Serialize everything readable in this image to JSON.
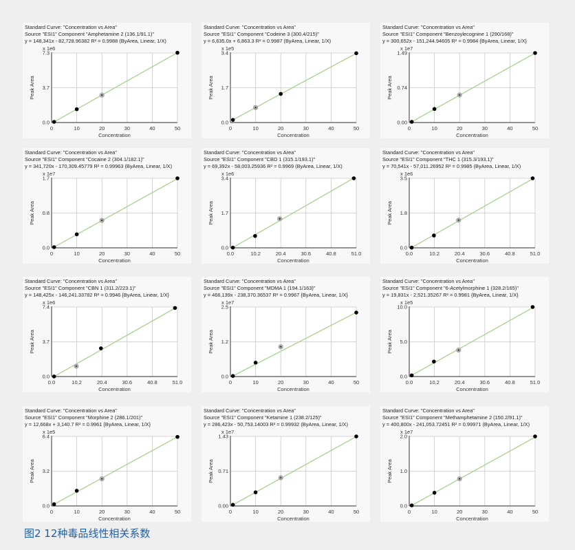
{
  "caption": "图2 12种毒品线性相关系数",
  "colors": {
    "fit_line": "#9fd08a",
    "point": "#000000",
    "excluded_point": "#a8a8a8",
    "grid": "#c8c8c8",
    "caption": "#1f5fa8"
  },
  "chart_data": [
    {
      "type": "scatter",
      "title": "Standard Curve: \"Concentration vs Area\"",
      "subtitle": "Source \"ESI1\" Component \"Amphetamine 2 (136.1/91.1)\"",
      "equation": "y = 148,341x - 82,728.96382    R² = 0.9988  (ByArea, Linear, 1/X)",
      "xlabel": "Concentration",
      "ylabel": "Peak Area",
      "multiplier": "x 1e6",
      "xlim": [
        0,
        50
      ],
      "ylim": [
        0,
        7.3
      ],
      "xticks": [
        "0",
        "10",
        "20",
        "30",
        "40",
        "50"
      ],
      "yticks": [
        "0.0",
        "3.7",
        "7.3"
      ],
      "slope": 148341,
      "intercept": -82728.96382,
      "scale": 1000000.0,
      "points": [
        {
          "x": 1,
          "y": 0.07
        },
        {
          "x": 10,
          "y": 1.4
        },
        {
          "x": 20,
          "y": 2.88,
          "excluded": true
        },
        {
          "x": 50,
          "y": 7.33
        }
      ]
    },
    {
      "type": "scatter",
      "title": "Standard Curve: \"Concentration vs Area\"",
      "subtitle": "Source \"ESI1\" Component \"Codeine 3 (300.4/215)\"",
      "equation": "y = 6,635.0x + 6,863.3    R² = 0.9987  (ByArea, Linear, 1/X)",
      "xlabel": "Concentration",
      "ylabel": "Peak Area",
      "multiplier": "x 1e5",
      "xlim": [
        0,
        50
      ],
      "ylim": [
        0,
        3.4
      ],
      "xticks": [
        "0",
        "10",
        "20",
        "30",
        "40",
        "50"
      ],
      "yticks": [
        "0.0",
        "1.7",
        "3.4"
      ],
      "slope": 6635.0,
      "intercept": 6863.3,
      "scale": 100000.0,
      "points": [
        {
          "x": 1,
          "y": 0.13
        },
        {
          "x": 10,
          "y": 0.73,
          "excluded": true
        },
        {
          "x": 20,
          "y": 1.4
        },
        {
          "x": 50,
          "y": 3.39
        }
      ]
    },
    {
      "type": "scatter",
      "title": "Standard Curve: \"Concentration vs Area\"",
      "subtitle": "Source \"ESI1\" Component \"Benzoylecognine 1 (290/168)\"",
      "equation": "y = 300,652x - 151,244.94605    R² = 0.9984  {ByArea, Linear, 1/X}",
      "xlabel": "Concentration",
      "ylabel": "Peak Area",
      "multiplier": "x 1e7",
      "xlim": [
        0,
        50
      ],
      "ylim": [
        0,
        1.49
      ],
      "xticks": [
        "0",
        "10",
        "20",
        "30",
        "40",
        "50"
      ],
      "yticks": [
        "0.00",
        "0.74",
        "1.49"
      ],
      "slope": 300652,
      "intercept": -151244.94605,
      "scale": 10000000.0,
      "points": [
        {
          "x": 1,
          "y": 0.015
        },
        {
          "x": 10,
          "y": 0.29
        },
        {
          "x": 20,
          "y": 0.59,
          "excluded": true
        },
        {
          "x": 50,
          "y": 1.49
        }
      ]
    },
    {
      "type": "scatter",
      "title": "Standard Curve: \"Concentration vs Area\"",
      "subtitle": "Source \"ESI1\" Component \"Cocaine 2 (304.1/182.1)\"",
      "equation": "y = 341,720x - 170,309.45779    R² = 0.99963  (ByArea, Linear, 1/X)",
      "xlabel": "Concentration",
      "ylabel": "Peak Area",
      "multiplier": "x 1e7",
      "xlim": [
        0,
        50
      ],
      "ylim": [
        0,
        1.7
      ],
      "xticks": [
        "0",
        "10",
        "20",
        "30",
        "40",
        "50"
      ],
      "yticks": [
        "0.0",
        "0.8",
        "1.7"
      ],
      "slope": 341720,
      "intercept": -170309.45779,
      "scale": 10000000.0,
      "points": [
        {
          "x": 1,
          "y": 0.017
        },
        {
          "x": 10,
          "y": 0.33
        },
        {
          "x": 20,
          "y": 0.67,
          "excluded": true
        },
        {
          "x": 50,
          "y": 1.7
        }
      ]
    },
    {
      "type": "scatter",
      "title": "Standard Curve: \"Concentration vs Area\"",
      "subtitle": "Source \"ESI1\" Component \"CBD 1 (315.1/193.1)\"",
      "equation": "y = 69,392x - 58,003.25936    R² = 0.9969  (ByArea, Linear, 1/X)",
      "xlabel": "Concentration",
      "ylabel": "Peak Area",
      "multiplier": "x 1e6",
      "xlim": [
        0,
        51
      ],
      "ylim": [
        0,
        3.4
      ],
      "xticks": [
        "0.0",
        "10.2",
        "20.4",
        "30.6",
        "40.8",
        "51.0"
      ],
      "yticks": [
        "0.0",
        "1.7",
        "3.4"
      ],
      "slope": 69392,
      "intercept": -58003.25936,
      "scale": 1000000.0,
      "points": [
        {
          "x": 1,
          "y": 0.01
        },
        {
          "x": 10,
          "y": 0.58
        },
        {
          "x": 20,
          "y": 1.42,
          "excluded": true
        },
        {
          "x": 50,
          "y": 3.4
        }
      ]
    },
    {
      "type": "scatter",
      "title": "Standard Curve: \"Concentration vs Area\"",
      "subtitle": "Source \"ESI1\" Component \"THC 1 (315.3/193.1)\"",
      "equation": "y = 70,541x - 57,011.26952    R² = 0.9985  (ByArea, Linear, 1/X)",
      "xlabel": "Concentration",
      "ylabel": "Peak Area",
      "multiplier": "x 1e6",
      "xlim": [
        0,
        51
      ],
      "ylim": [
        0,
        3.5
      ],
      "xticks": [
        "0.0",
        "10.2",
        "20.4",
        "30.6",
        "40.8",
        "51.0"
      ],
      "yticks": [
        "0.0",
        "1.8",
        "3.5"
      ],
      "slope": 70541,
      "intercept": -57011.26952,
      "scale": 1000000.0,
      "points": [
        {
          "x": 1,
          "y": 0.01
        },
        {
          "x": 10,
          "y": 0.62
        },
        {
          "x": 20,
          "y": 1.39,
          "excluded": true
        },
        {
          "x": 50,
          "y": 3.5
        }
      ]
    },
    {
      "type": "scatter",
      "title": "Standard Curve: \"Concentration vs Area\"",
      "subtitle": "Source \"ESI1\" Component \"CBN 1 (311.2/223.1)\"",
      "equation": "y = 148,425x - 146,241.33782    R² = 0.9946  {ByArea, Linear, 1/X}",
      "xlabel": "Concentration",
      "ylabel": "Peak Area",
      "multiplier": "x 1e6",
      "xlim": [
        0,
        51
      ],
      "ylim": [
        0,
        7.4
      ],
      "xticks": [
        "0.0",
        "10.2",
        "20.4",
        "30.6",
        "40.8",
        "51.0"
      ],
      "yticks": [
        "0.0",
        "3.7",
        "7.4"
      ],
      "slope": 148425,
      "intercept": -146241.33782,
      "scale": 1000000.0,
      "points": [
        {
          "x": 1,
          "y": 0.01
        },
        {
          "x": 10,
          "y": 1.1,
          "excluded": true
        },
        {
          "x": 20,
          "y": 3.0
        },
        {
          "x": 50,
          "y": 7.3
        }
      ]
    },
    {
      "type": "scatter",
      "title": "Standard Curve: \"Concentration vs Area\"",
      "subtitle": "Source \"ESI1\" Component \"MDMA 1 (194.1/163)\"",
      "equation": "y = 466,139x - 238,370.36537    R² = 0.9967  {ByArea, Linear, 1/X}",
      "xlabel": "Concentration",
      "ylabel": "Peak Area",
      "multiplier": "x 1e7",
      "xlim": [
        0,
        50
      ],
      "ylim": [
        0,
        2.5
      ],
      "xticks": [
        "0",
        "10",
        "20",
        "30",
        "40",
        "50"
      ],
      "yticks": [
        "0.0",
        "1.2",
        "2.5"
      ],
      "slope": 466139,
      "intercept": -238370.36537,
      "scale": 10000000.0,
      "points": [
        {
          "x": 1,
          "y": 0.02
        },
        {
          "x": 10,
          "y": 0.5
        },
        {
          "x": 20,
          "y": 1.07,
          "excluded": true
        },
        {
          "x": 50,
          "y": 2.3
        }
      ]
    },
    {
      "type": "scatter",
      "title": "Standard Curve: \"Concentration vs Area\"",
      "subtitle": "Source \"ESI1\" Component \"6-Acetylmorphine 1 (328.2/165)\"",
      "equation": "y = 19,831x - 2,521.35267    R² = 0.9981  {ByArea, Linear, 1/X}",
      "xlabel": "Concentration",
      "ylabel": "Peak Area",
      "multiplier": "x 1e5",
      "xlim": [
        0,
        51
      ],
      "ylim": [
        0,
        10.0
      ],
      "xticks": [
        "0.0",
        "10.2",
        "20.4",
        "30.6",
        "40.8",
        "51.0"
      ],
      "yticks": [
        "0.0",
        "5.0",
        "10.0"
      ],
      "slope": 19831,
      "intercept": -2521.35267,
      "scale": 100000.0,
      "points": [
        {
          "x": 1,
          "y": 0.17
        },
        {
          "x": 10,
          "y": 2.15
        },
        {
          "x": 20,
          "y": 3.8,
          "excluded": true
        },
        {
          "x": 50,
          "y": 10.0
        }
      ]
    },
    {
      "type": "scatter",
      "title": "Standard Curve: \"Concentration vs Area\"",
      "subtitle": "Source \"ESI1\" Component \"Morphine 2 (286.1/201)\"",
      "equation": "y = 12,668x + 3,140.7    R² = 0.9961  {ByArea, Linear, 1/X}",
      "xlabel": "Concentration",
      "ylabel": "Peak Area",
      "multiplier": "x 1e5",
      "xlim": [
        0,
        50
      ],
      "ylim": [
        0,
        6.4
      ],
      "xticks": [
        "0",
        "10",
        "20",
        "30",
        "40",
        "50"
      ],
      "yticks": [
        "0.0",
        "3.2",
        "6.4"
      ],
      "slope": 12668,
      "intercept": 3140.7,
      "scale": 100000.0,
      "points": [
        {
          "x": 1,
          "y": 0.16
        },
        {
          "x": 10,
          "y": 1.4
        },
        {
          "x": 20,
          "y": 2.5,
          "excluded": true
        },
        {
          "x": 50,
          "y": 6.36
        }
      ]
    },
    {
      "type": "scatter",
      "title": "Standard Curve: \"Concentration vs Area\"",
      "subtitle": "Source \"ESI1\" Component \"Ketamine 1 (238.2/125)\"",
      "equation": "y = 286,423x - 50,753.14003    R² = 0.99932  (ByArea, Linear, 1/X)",
      "xlabel": "Concentration",
      "ylabel": "Peak Area",
      "multiplier": "x 1e7",
      "xlim": [
        0,
        50
      ],
      "ylim": [
        0,
        1.43
      ],
      "xticks": [
        "0",
        "10",
        "20",
        "30",
        "40",
        "50"
      ],
      "yticks": [
        "0.00",
        "0.71",
        "1.43"
      ],
      "slope": 286423,
      "intercept": -50753.14003,
      "scale": 10000000.0,
      "points": [
        {
          "x": 1,
          "y": 0.024
        },
        {
          "x": 10,
          "y": 0.28
        },
        {
          "x": 20,
          "y": 0.58,
          "excluded": true
        },
        {
          "x": 50,
          "y": 1.43
        }
      ]
    },
    {
      "type": "scatter",
      "title": "Standard Curve: \"Concentration vs Area\"",
      "subtitle": "Source \"ESI1\" Component \"Methamphetamine 2 (150.2/91.1)\"",
      "equation": "y = 400,800x - 241,053.72451    R² = 0.99971  (ByArea, Linear, 1/X)",
      "xlabel": "Concentration",
      "ylabel": "Peak Area",
      "multiplier": "x 1e7",
      "xlim": [
        0,
        50
      ],
      "ylim": [
        0,
        2.0
      ],
      "xticks": [
        "0",
        "10",
        "20",
        "30",
        "40",
        "50"
      ],
      "yticks": [
        "0.0",
        "1.0",
        "2.0"
      ],
      "slope": 400800,
      "intercept": -241053.72451,
      "scale": 10000000.0,
      "points": [
        {
          "x": 1,
          "y": 0.016
        },
        {
          "x": 10,
          "y": 0.38
        },
        {
          "x": 20,
          "y": 0.78,
          "excluded": true
        },
        {
          "x": 50,
          "y": 2.0
        }
      ]
    }
  ]
}
